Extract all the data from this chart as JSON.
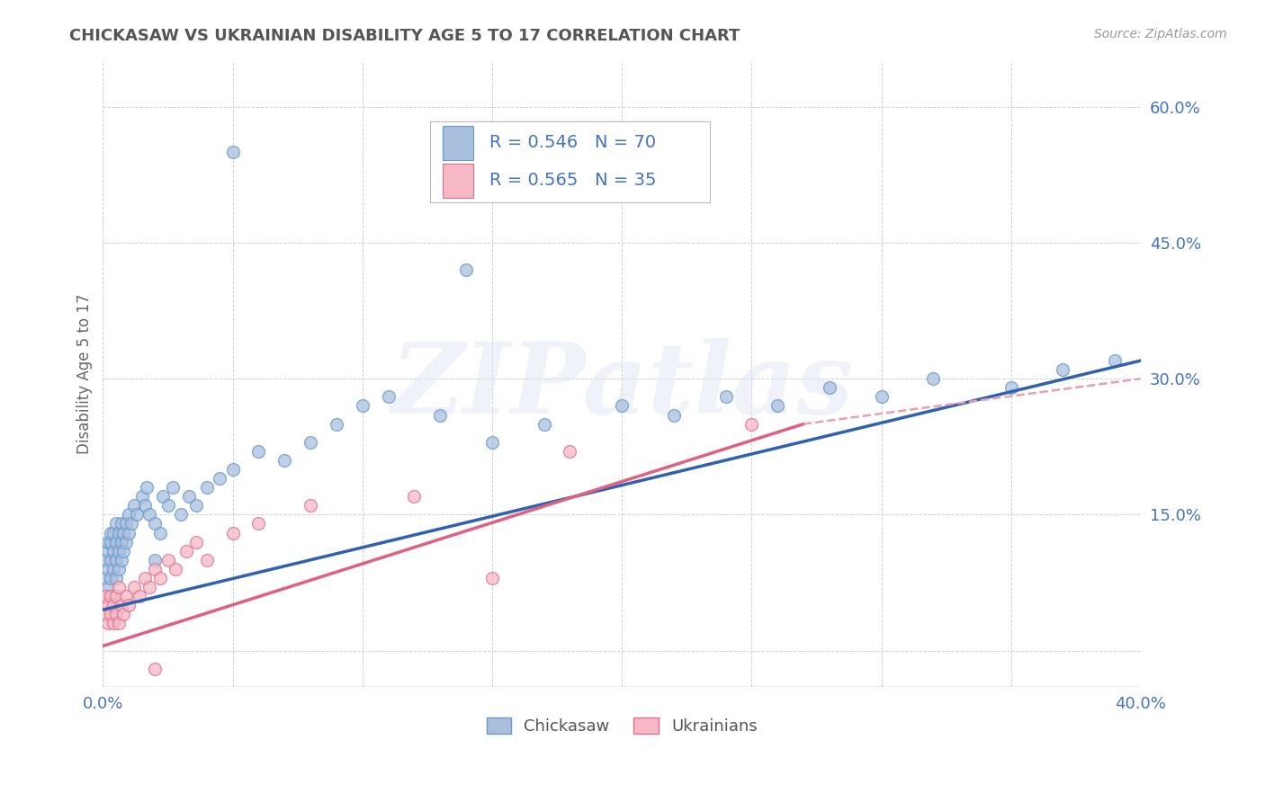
{
  "title": "CHICKASAW VS UKRAINIAN DISABILITY AGE 5 TO 17 CORRELATION CHART",
  "source_text": "Source: ZipAtlas.com",
  "ylabel": "Disability Age 5 to 17",
  "xlim": [
    0.0,
    0.4
  ],
  "ylim": [
    -0.04,
    0.65
  ],
  "background_color": "#ffffff",
  "grid_color": "#cccccc",
  "title_color": "#555555",
  "axis_label_color": "#4472c4",
  "watermark_text": "ZIPatlas",
  "chickasaw_color": "#aabfdd",
  "chickasaw_edge": "#6699cc",
  "ukrainian_color": "#f5b8c4",
  "ukrainian_edge": "#e07090",
  "legend_R1": "R = 0.546",
  "legend_N1": "N = 70",
  "legend_R2": "R = 0.565",
  "legend_N2": "N = 35",
  "trend1_color": "#3060b0",
  "trend2_color": "#e06080",
  "trend2_dash_color": "#e8a0b0",
  "chickasaw_x": [
    0.001,
    0.001,
    0.001,
    0.002,
    0.002,
    0.002,
    0.002,
    0.003,
    0.003,
    0.003,
    0.003,
    0.004,
    0.004,
    0.004,
    0.005,
    0.005,
    0.005,
    0.005,
    0.006,
    0.006,
    0.006,
    0.007,
    0.007,
    0.007,
    0.008,
    0.008,
    0.009,
    0.009,
    0.01,
    0.01,
    0.011,
    0.012,
    0.013,
    0.015,
    0.016,
    0.017,
    0.018,
    0.02,
    0.022,
    0.023,
    0.025,
    0.027,
    0.03,
    0.033,
    0.036,
    0.04,
    0.045,
    0.05,
    0.06,
    0.07,
    0.08,
    0.09,
    0.1,
    0.11,
    0.13,
    0.15,
    0.17,
    0.2,
    0.22,
    0.24,
    0.26,
    0.28,
    0.3,
    0.32,
    0.35,
    0.37,
    0.39,
    0.14,
    0.05,
    0.02
  ],
  "chickasaw_y": [
    0.06,
    0.08,
    0.1,
    0.07,
    0.09,
    0.11,
    0.12,
    0.08,
    0.1,
    0.12,
    0.13,
    0.09,
    0.11,
    0.13,
    0.08,
    0.1,
    0.12,
    0.14,
    0.09,
    0.11,
    0.13,
    0.1,
    0.12,
    0.14,
    0.11,
    0.13,
    0.12,
    0.14,
    0.13,
    0.15,
    0.14,
    0.16,
    0.15,
    0.17,
    0.16,
    0.18,
    0.15,
    0.14,
    0.13,
    0.17,
    0.16,
    0.18,
    0.15,
    0.17,
    0.16,
    0.18,
    0.19,
    0.2,
    0.22,
    0.21,
    0.23,
    0.25,
    0.27,
    0.28,
    0.26,
    0.23,
    0.25,
    0.27,
    0.26,
    0.28,
    0.27,
    0.29,
    0.28,
    0.3,
    0.29,
    0.31,
    0.32,
    0.42,
    0.55,
    0.1
  ],
  "ukrainian_x": [
    0.001,
    0.001,
    0.002,
    0.002,
    0.003,
    0.003,
    0.004,
    0.004,
    0.005,
    0.005,
    0.006,
    0.006,
    0.007,
    0.008,
    0.009,
    0.01,
    0.012,
    0.014,
    0.016,
    0.018,
    0.02,
    0.022,
    0.025,
    0.028,
    0.032,
    0.036,
    0.04,
    0.05,
    0.06,
    0.08,
    0.12,
    0.18,
    0.25,
    0.02,
    0.15
  ],
  "ukrainian_y": [
    0.04,
    0.06,
    0.03,
    0.05,
    0.04,
    0.06,
    0.03,
    0.05,
    0.04,
    0.06,
    0.03,
    0.07,
    0.05,
    0.04,
    0.06,
    0.05,
    0.07,
    0.06,
    0.08,
    0.07,
    0.09,
    0.08,
    0.1,
    0.09,
    0.11,
    0.12,
    0.1,
    0.13,
    0.14,
    0.16,
    0.17,
    0.22,
    0.25,
    -0.02,
    0.08
  ],
  "trend1_x0": 0.0,
  "trend1_y0": 0.045,
  "trend1_x1": 0.4,
  "trend1_y1": 0.32,
  "trend2_solid_x0": 0.0,
  "trend2_solid_y0": 0.005,
  "trend2_solid_x1": 0.27,
  "trend2_solid_y1": 0.25,
  "trend2_dash_x0": 0.27,
  "trend2_dash_y0": 0.25,
  "trend2_dash_x1": 0.4,
  "trend2_dash_y1": 0.3
}
